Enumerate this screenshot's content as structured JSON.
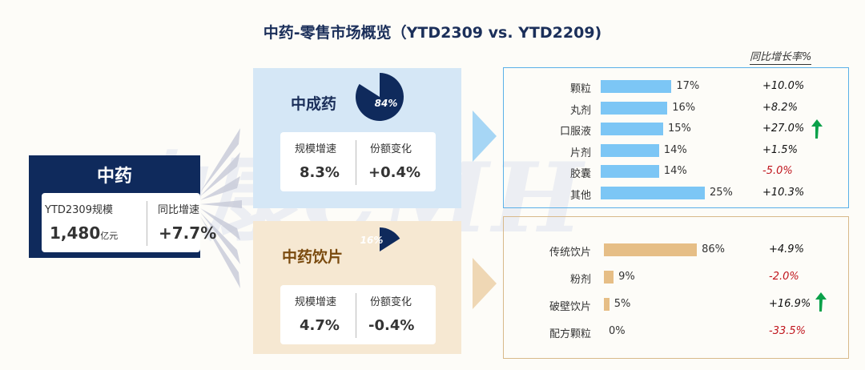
{
  "title": "中药-零售市场概览（YTD2309 vs. YTD2209)",
  "growth_header": "同比增长率%",
  "watermark": "中康CMH",
  "main": {
    "name": "中药",
    "scale_label": "YTD2309规模",
    "scale_value": "1,480",
    "scale_unit": "亿元",
    "growth_label": "同比增速",
    "growth_value": "+7.7%"
  },
  "segments": [
    {
      "name": "中成药",
      "share": "84%",
      "share_value": 84,
      "growth_label": "规模增速",
      "growth_value": "8.3%",
      "share_change_label": "份额变化",
      "share_change_value": "+0.4%"
    },
    {
      "name": "中药饮片",
      "share": "16%",
      "share_value": 16,
      "growth_label": "规模增速",
      "growth_value": "4.7%",
      "share_change_label": "份额变化",
      "share_change_value": "-0.4%"
    }
  ],
  "chart_data": [
    {
      "type": "bar",
      "categories": [
        "颗粒",
        "丸剂",
        "口服液",
        "片剂",
        "胶囊",
        "其他"
      ],
      "values": [
        17,
        16,
        15,
        14,
        14,
        25
      ],
      "value_labels": [
        "17%",
        "16%",
        "15%",
        "14%",
        "14%",
        "25%"
      ],
      "growth": [
        "+10.0%",
        "+8.2%",
        "+27.0%",
        "+1.5%",
        "-5.0%",
        "+10.3%"
      ],
      "color": "#7cc6f5"
    },
    {
      "type": "bar",
      "categories": [
        "传统饮片",
        "粉剂",
        "破壁饮片",
        "配方颗粒"
      ],
      "values": [
        86,
        9,
        5,
        0
      ],
      "value_labels": [
        "86%",
        "9%",
        "5%",
        "0%"
      ],
      "growth": [
        "+4.9%",
        "-2.0%",
        "+16.9%",
        "-33.5%"
      ],
      "color": "#e6be86"
    }
  ],
  "colors": {
    "navy": "#0f2a5c",
    "green": "#0aa14a",
    "red": "#c0141c"
  }
}
